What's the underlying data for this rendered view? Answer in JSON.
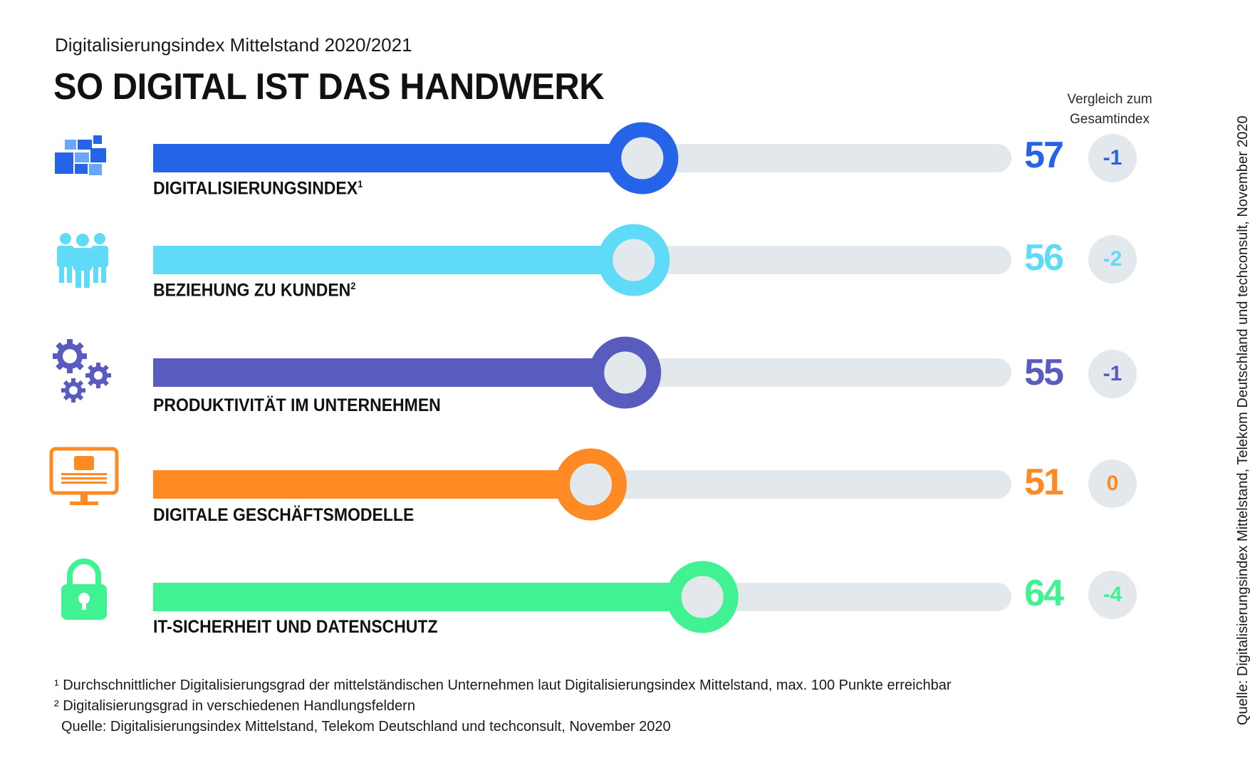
{
  "header": {
    "subtitle": "Digitalisierungsindex Mittelstand 2020/2021",
    "title": "SO DIGITAL IST DAS HANDWERK"
  },
  "compare_header": {
    "line1": "Vergleich zum",
    "line2": "Gesamtindex"
  },
  "chart_data": {
    "type": "bar",
    "title": "SO DIGITAL IST DAS HANDWERK",
    "xlim": [
      0,
      100
    ],
    "categories": [
      "DIGITALISIERUNGSINDEX",
      "BEZIEHUNG ZU KUNDEN",
      "PRODUKTIVITÄT IM UNTERNEHMEN",
      "DIGITALE GESCHÄFTSMODELLE",
      "IT-SICHERHEIT UND DATENSCHUTZ"
    ],
    "values": [
      57,
      56,
      55,
      51,
      64
    ],
    "comparison_to_overall_index": [
      "-1",
      "-2",
      "-1",
      "0",
      "-4"
    ]
  },
  "rows": [
    {
      "label": "DIGITALISIERUNGSINDEX",
      "sup": "1",
      "value": "57",
      "diff": "-1",
      "color": "#2563e8",
      "icon": "blocks-icon"
    },
    {
      "label": "BEZIEHUNG ZU KUNDEN",
      "sup": "2",
      "value": "56",
      "diff": "-2",
      "color": "#5fdbf7",
      "icon": "people-icon"
    },
    {
      "label": "PRODUKTIVITÄT IM UNTERNEHMEN",
      "sup": "",
      "value": "55",
      "diff": "-1",
      "color": "#5a5bbf",
      "icon": "gears-icon"
    },
    {
      "label": "DIGITALE GESCHÄFTSMODELLE",
      "sup": "",
      "value": "51",
      "diff": "0",
      "color": "#ff8a24",
      "icon": "monitor-icon"
    },
    {
      "label": "IT-SICHERHEIT UND DATENSCHUTZ",
      "sup": "",
      "value": "64",
      "diff": "-4",
      "color": "#40f291",
      "icon": "lock-icon"
    }
  ],
  "colors": {
    "track": "#e3e8ec",
    "knob": "#e3e8ec"
  },
  "footnotes": {
    "note1": "¹ Durchschnittlicher Digitalisierungsgrad der mittelständischen Unternehmen laut Digitalisierungsindex Mittelstand, max. 100 Punkte erreichbar",
    "note2": "² Digitalisierungsgrad in verschiedenen Handlungsfeldern",
    "source": "Quelle: Digitalisierungsindex Mittelstand, Telekom Deutschland und techconsult, November 2020"
  },
  "side_source": "Quelle: Digitalisierungsindex Mittelstand, Telekom Deutschland und techconsult, November 2020"
}
